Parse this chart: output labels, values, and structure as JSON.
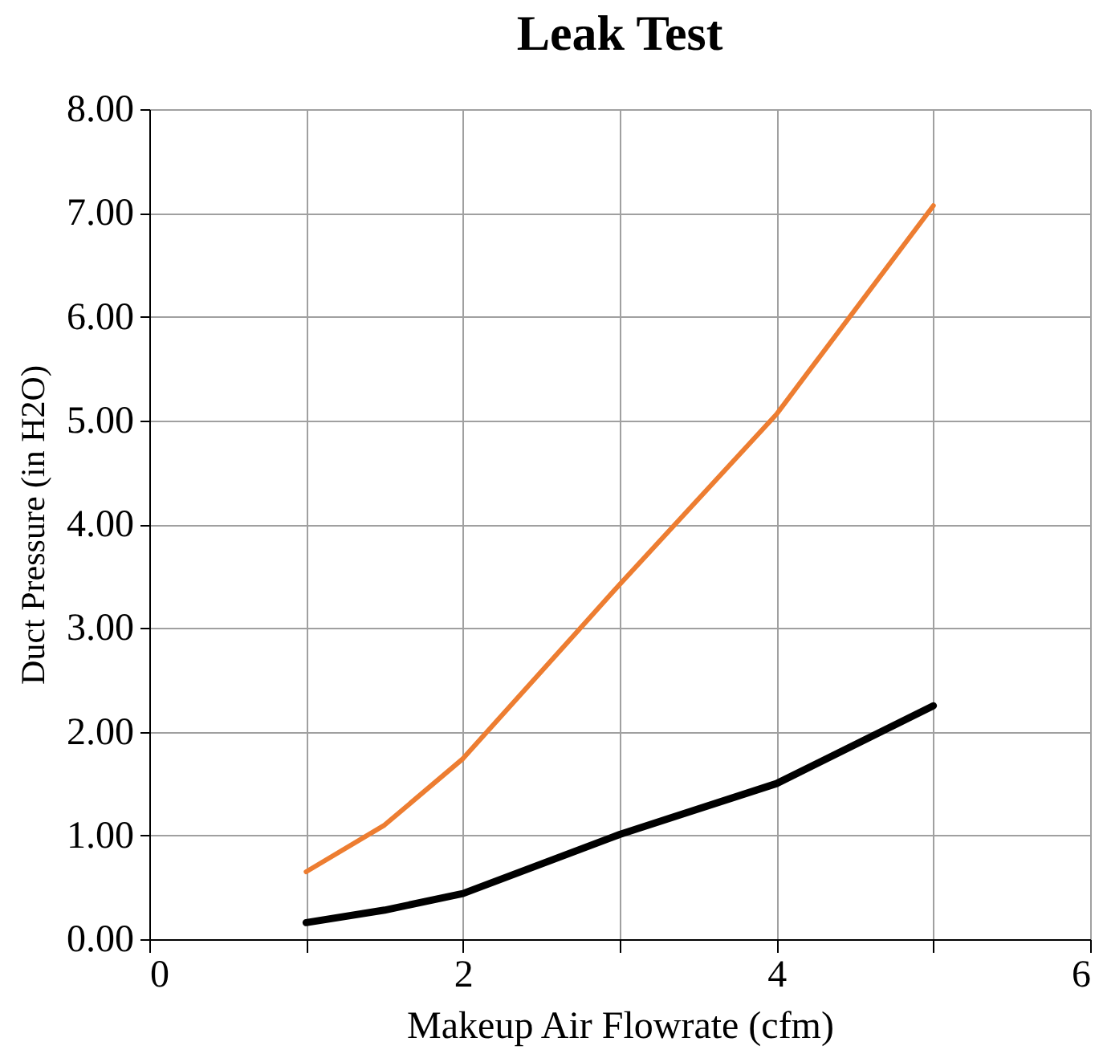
{
  "chart_data": {
    "type": "line",
    "title": "Leak Test",
    "xlabel": "Makeup Air Flowrate (cfm)",
    "ylabel": "Duct Pressure (in H2O)",
    "x": [
      1,
      1.5,
      2,
      3,
      4,
      5
    ],
    "series": [
      {
        "color": "#ed7d31",
        "values": [
          0.65,
          1.1,
          1.74,
          3.42,
          5.06,
          7.07
        ]
      },
      {
        "color": "#000000",
        "values": [
          0.16,
          0.28,
          0.44,
          1.01,
          1.5,
          2.25
        ]
      }
    ],
    "xlim": [
      0,
      6
    ],
    "xticks": [
      0,
      {
        "value": 1,
        "label": null
      },
      2,
      {
        "value": 3,
        "label": null
      },
      4,
      {
        "value": 5,
        "label": null
      },
      6
    ],
    "ylim": [
      0,
      8
    ],
    "yticks": [
      {
        "value": 0,
        "label": "0.00"
      },
      {
        "value": 1,
        "label": "1.00"
      },
      {
        "value": 2,
        "label": "2.00"
      },
      {
        "value": 3,
        "label": "3.00"
      },
      {
        "value": 4,
        "label": "4.00"
      },
      {
        "value": 5,
        "label": "5.00"
      },
      {
        "value": 6,
        "label": "6.00"
      },
      {
        "value": 7,
        "label": "7.00"
      },
      {
        "value": 8,
        "label": "8.00"
      }
    ],
    "grid": true,
    "legend": false,
    "marker": "none",
    "line_style": "solid"
  }
}
